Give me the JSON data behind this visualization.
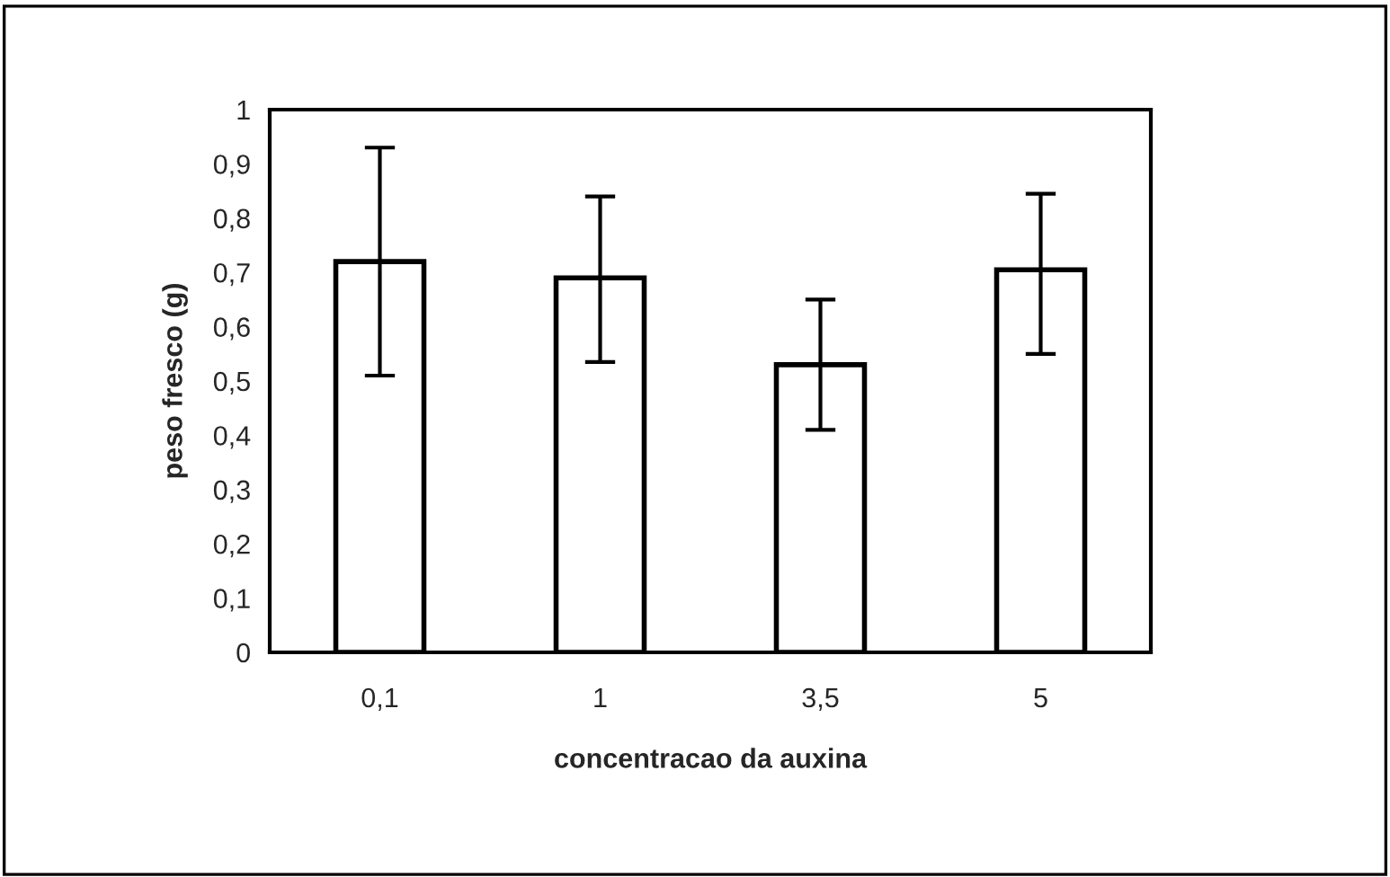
{
  "chart_data": {
    "type": "bar",
    "xlabel": "concentracao da auxina",
    "ylabel": "peso fresco (g)",
    "categories": [
      "0,1",
      "1",
      "3,5",
      "5"
    ],
    "values": [
      0.72,
      0.69,
      0.53,
      0.705
    ],
    "errors": [
      [
        0.51,
        0.93
      ],
      [
        0.535,
        0.84
      ],
      [
        0.41,
        0.65
      ],
      [
        0.55,
        0.845
      ]
    ],
    "color": "#ffffff",
    "ylim": [
      0,
      1
    ],
    "yticks": [
      0,
      {
        "value": 0.1,
        "label": "0,1"
      },
      {
        "value": 0.2,
        "label": "0,2"
      },
      {
        "value": 0.3,
        "label": "0,3"
      },
      {
        "value": 0.4,
        "label": "0,4"
      },
      {
        "value": 0.5,
        "label": "0,5"
      },
      {
        "value": 0.6,
        "label": "0,6"
      },
      {
        "value": 0.7,
        "label": "0,7"
      },
      {
        "value": 0.8,
        "label": "0,8"
      },
      {
        "value": 0.9,
        "label": "0,9"
      },
      1
    ],
    "grid": false,
    "legend": false
  }
}
